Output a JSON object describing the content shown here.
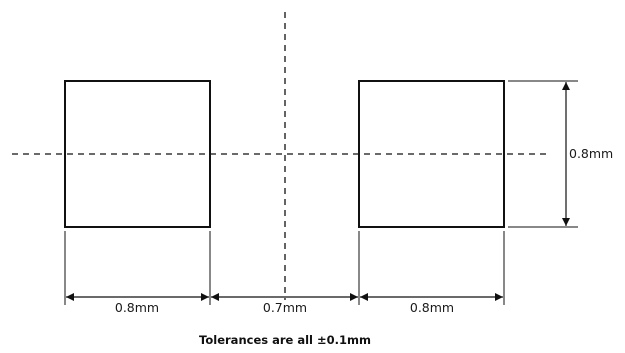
{
  "dimensions": {
    "left_pad_width": "0.8mm",
    "pad_gap": "0.7mm",
    "right_pad_width": "0.8mm",
    "pad_height": "0.8mm"
  },
  "note": "Tolerances are all ±0.1mm",
  "colors": {
    "line": "#111111",
    "background": "#ffffff"
  }
}
